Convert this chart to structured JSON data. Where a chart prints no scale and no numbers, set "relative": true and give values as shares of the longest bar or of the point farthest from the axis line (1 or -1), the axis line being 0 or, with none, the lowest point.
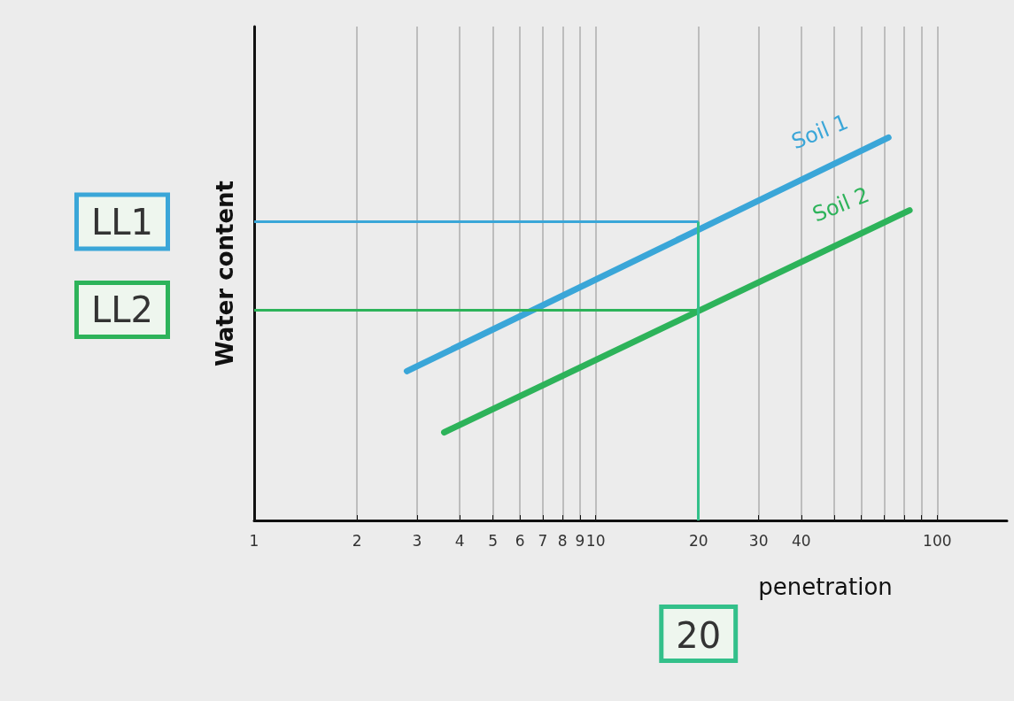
{
  "chart_data": {
    "type": "line",
    "relative": true,
    "log": "x",
    "xlabel": "penetration",
    "ylabel": "Water content",
    "xlim": [
      1,
      160
    ],
    "xticks": [
      1,
      2,
      3,
      4,
      5,
      6,
      7,
      8,
      9,
      10,
      20,
      30,
      40,
      {
        "value": 50,
        "label": null
      },
      {
        "value": 60,
        "label": null
      },
      {
        "value": 70,
        "label": null
      },
      {
        "value": 80,
        "label": null
      },
      {
        "value": 90,
        "label": null
      },
      100
    ],
    "grid": "x",
    "legend": false,
    "marker": "none",
    "line_style": "solid",
    "series": [
      {
        "name": "Soil 1",
        "color": "#3aa6d8",
        "x": [
          2.8,
          72
        ],
        "values": [
          0.39,
          1
        ]
      },
      {
        "name": "Soil 2",
        "color": "#2db35a",
        "x": [
          3.6,
          83
        ],
        "values": [
          0.23,
          0.81
        ]
      }
    ],
    "ref_lines": [
      {
        "axis": "y",
        "value": 0.78,
        "label": "LL1",
        "color": "#3aa6d8"
      },
      {
        "axis": "y",
        "value": 0.55,
        "label": "LL2",
        "color": "#2db35a"
      },
      {
        "axis": "x",
        "value": 20,
        "label": "20",
        "color": "#33c08a"
      }
    ]
  }
}
